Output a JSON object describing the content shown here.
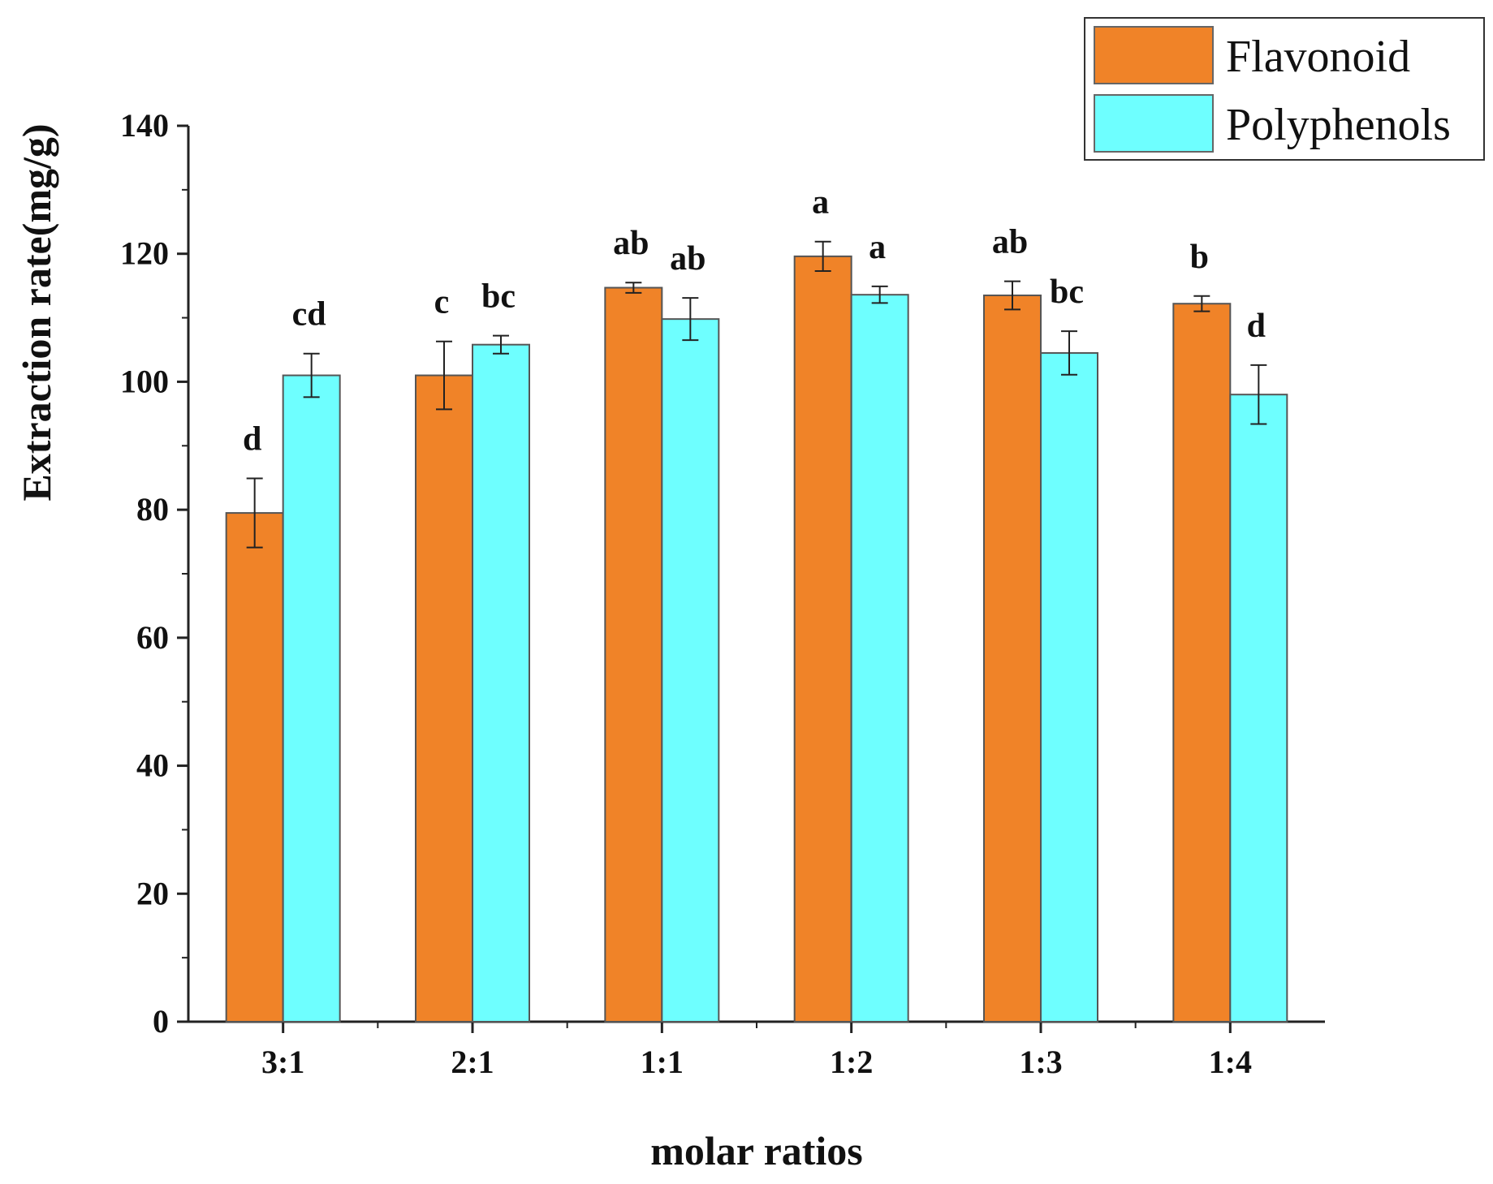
{
  "chart_data": {
    "type": "bar",
    "title": "",
    "xlabel": "molar ratios",
    "ylabel": "Extraction rate(mg/g)",
    "ylim": [
      0,
      140
    ],
    "yticks": [
      0,
      20,
      40,
      60,
      80,
      100,
      120,
      140
    ],
    "categories": [
      "3:1",
      "2:1",
      "1:1",
      "1:2",
      "1:3",
      "1:4"
    ],
    "series": [
      {
        "name": "Flavonoid",
        "color": "#F08328",
        "values": [
          79.5,
          101.0,
          114.7,
          119.6,
          113.5,
          112.2
        ],
        "errors": [
          5.4,
          5.3,
          0.8,
          2.3,
          2.2,
          1.2
        ],
        "significance": [
          "d",
          "c",
          "ab",
          "a",
          "ab",
          "b"
        ]
      },
      {
        "name": "Polyphenols",
        "color": "#6EFFFF",
        "values": [
          101.0,
          105.8,
          109.8,
          113.6,
          104.5,
          98.0
        ],
        "errors": [
          3.4,
          1.4,
          3.3,
          1.3,
          3.4,
          4.6
        ],
        "significance": [
          "cd",
          "bc",
          "ab",
          "a",
          "bc",
          "d"
        ]
      }
    ],
    "legend_position": "top-right",
    "grid": false
  }
}
